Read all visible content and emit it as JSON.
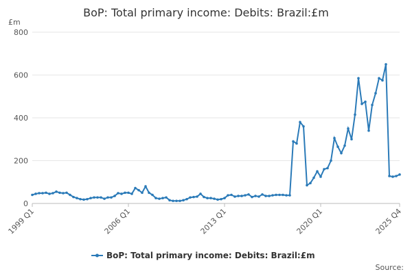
{
  "chart_data": {
    "type": "line",
    "title": "BoP: Total primary income: Debits: Brazil:£m",
    "y_unit": "£m",
    "source": "Source:",
    "categories": [
      "1999 Q1",
      null,
      null,
      null,
      null,
      null,
      null,
      null,
      null,
      null,
      null,
      null,
      null,
      null,
      null,
      null,
      null,
      null,
      null,
      null,
      null,
      null,
      null,
      null,
      null,
      null,
      null,
      null,
      "2006 Q1",
      null,
      null,
      null,
      null,
      null,
      null,
      null,
      null,
      null,
      null,
      null,
      null,
      null,
      null,
      null,
      null,
      null,
      null,
      null,
      null,
      null,
      null,
      null,
      null,
      null,
      null,
      null,
      "2013 Q1",
      null,
      null,
      null,
      null,
      null,
      null,
      null,
      null,
      null,
      null,
      null,
      null,
      null,
      null,
      null,
      null,
      null,
      null,
      null,
      null,
      null,
      null,
      null,
      null,
      null,
      null,
      null,
      "2020 Q1",
      null,
      null,
      null,
      null,
      null,
      null,
      null,
      null,
      null,
      null,
      null,
      null,
      null,
      null,
      null,
      null,
      null,
      null,
      null,
      null,
      null,
      null,
      "2025 Q4"
    ],
    "series": [
      {
        "name": "BoP: Total primary income: Debits: Brazil:£m",
        "color": "#2a7ab8",
        "values": [
          40,
          45,
          48,
          48,
          50,
          45,
          48,
          55,
          50,
          48,
          50,
          40,
          30,
          25,
          20,
          18,
          20,
          25,
          28,
          28,
          28,
          22,
          28,
          28,
          35,
          48,
          45,
          50,
          50,
          45,
          72,
          62,
          50,
          80,
          50,
          40,
          25,
          22,
          25,
          28,
          15,
          12,
          12,
          12,
          15,
          20,
          28,
          30,
          32,
          45,
          30,
          25,
          25,
          22,
          18,
          20,
          25,
          38,
          40,
          32,
          35,
          35,
          38,
          42,
          30,
          35,
          32,
          42,
          35,
          35,
          38,
          40,
          40,
          40,
          38,
          38,
          290,
          280,
          380,
          360,
          85,
          95,
          120,
          150,
          125,
          160,
          165,
          200,
          305,
          265,
          235,
          270,
          350,
          300,
          415,
          585,
          465,
          475,
          340,
          460,
          515,
          585,
          575,
          650,
          128,
          125,
          128,
          135
        ]
      }
    ],
    "ylim": [
      0,
      800
    ],
    "yticks": [
      0,
      200,
      400,
      600,
      800
    ],
    "grid": true
  }
}
